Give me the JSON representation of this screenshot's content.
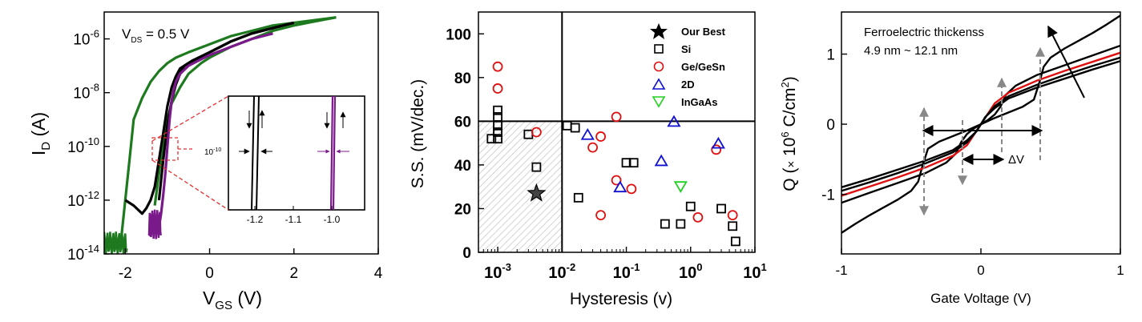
{
  "colors": {
    "green": "#1e7a1e",
    "black": "#000000",
    "purple": "#7a1a8a",
    "red_dash": "#e53030",
    "si": "#000000",
    "gegesn": "#e01010",
    "twod": "#1010d0",
    "ingaas": "#20d020",
    "hatch": "#bfbfbf",
    "grey_arrow": "#888888",
    "red_curve": "#e01010"
  },
  "chart_data": [
    {
      "type": "line",
      "ylabel_main": "I",
      "ylabel_sub": "D",
      "ylabel_unit": " (A)",
      "xlabel_main": "V",
      "xlabel_sub": "GS",
      "xlabel_unit": " (V)",
      "annotation": {
        "main": "V",
        "sub": "DS",
        "rest": " = 0.5 V"
      },
      "xlim": [
        -2.5,
        4
      ],
      "ylim_exp": [
        -14,
        -5
      ],
      "xticks": [
        "-2",
        "0",
        "2",
        "4"
      ],
      "ytick_base": "10",
      "ytick_exps": [
        "-6",
        "-8",
        "-10",
        "-12",
        "-14"
      ],
      "series": [
        {
          "color_key": "green",
          "x": [
            -2.5,
            -2.1,
            -1.9,
            -1.8,
            -1.6,
            -1.4,
            -1.2,
            -1.0,
            -0.8,
            -0.5,
            0.0,
            0.5,
            1.0,
            1.5,
            2.0,
            2.5,
            3.0
          ],
          "y": [
            -13.8,
            -13.5,
            -10.5,
            -9.0,
            -8.2,
            -7.6,
            -7.2,
            -6.9,
            -6.7,
            -6.5,
            -6.2,
            -5.9,
            -5.7,
            -5.5,
            -5.4,
            -5.3,
            -5.2
          ]
        },
        {
          "color_key": "green",
          "x": [
            -1.3,
            -1.2,
            -1.1,
            -1.0,
            -0.9,
            -0.7,
            -0.5,
            -0.2,
            0.0,
            0.5,
            1.0,
            1.5,
            2.0,
            2.5,
            3.0
          ],
          "y": [
            -12.2,
            -11.0,
            -9.8,
            -9.0,
            -8.4,
            -7.8,
            -7.3,
            -6.9,
            -6.7,
            -6.3,
            -6.0,
            -5.7,
            -5.5,
            -5.35,
            -5.2
          ]
        },
        {
          "color_key": "black",
          "x": [
            -2.0,
            -1.8,
            -1.6,
            -1.5,
            -1.4,
            -1.3,
            -1.2,
            -1.1,
            -1.0,
            -0.9,
            -0.8,
            -0.7,
            -0.5,
            0.0,
            0.5,
            1.0,
            1.5,
            2.0
          ],
          "y": [
            -12.0,
            -12.2,
            -12.5,
            -12.3,
            -12.0,
            -11.5,
            -10.5,
            -9.5,
            -8.5,
            -7.8,
            -7.4,
            -7.1,
            -6.9,
            -6.5,
            -6.1,
            -5.8,
            -5.6,
            -5.4
          ]
        },
        {
          "color_key": "black",
          "x": [
            -1.2,
            -1.1,
            -1.0,
            -0.9,
            -0.8,
            -0.7,
            -0.6,
            -0.4,
            0.0,
            0.5,
            1.0,
            1.5,
            2.0
          ],
          "y": [
            -12.0,
            -10.5,
            -9.2,
            -8.3,
            -7.7,
            -7.3,
            -7.0,
            -6.8,
            -6.5,
            -6.1,
            -5.8,
            -5.6,
            -5.4
          ]
        },
        {
          "color_key": "purple",
          "x": [
            -1.2,
            -1.15,
            -1.1,
            -1.05,
            -1.0,
            -0.95,
            -0.9,
            -0.85,
            -0.8,
            -0.7,
            -0.5,
            0.0,
            0.5,
            1.0,
            1.5
          ],
          "y": [
            -13.0,
            -12.5,
            -11.8,
            -11.0,
            -10.0,
            -9.0,
            -8.3,
            -7.9,
            -7.6,
            -7.3,
            -7.0,
            -6.6,
            -6.3,
            -6.0,
            -5.8
          ]
        }
      ],
      "inset": {
        "xticks": [
          "-1.2",
          "-1.1",
          "-1.0"
        ],
        "yexp": "-10"
      }
    },
    {
      "type": "scatter",
      "ylabel": "S.S. (mV/dec.)",
      "xlabel": "Hysteresis (v)",
      "xlim_exp": [
        -3.3,
        1
      ],
      "ylim": [
        0,
        110
      ],
      "xtick_base": "10",
      "xtick_exps": [
        "-3",
        "-2",
        "-1",
        "0",
        "1"
      ],
      "yticks": [
        "0",
        "20",
        "40",
        "60",
        "80",
        "100"
      ],
      "reference_lines": {
        "x": 0.01,
        "y": 60
      },
      "legend_position": "top-right",
      "legend": [
        "Our Best",
        "Si",
        "Ge/GeSn",
        "2D",
        "InGaAs"
      ],
      "series": [
        {
          "marker": "star",
          "color_key": "black",
          "points": [
            [
              0.004,
              27
            ]
          ]
        },
        {
          "marker": "square",
          "color_key": "si",
          "points": [
            [
              0.001,
              65
            ],
            [
              0.001,
              62
            ],
            [
              0.001,
              58
            ],
            [
              0.001,
              55
            ],
            [
              0.001,
              52
            ],
            [
              0.0008,
              52
            ],
            [
              0.003,
              54
            ],
            [
              0.004,
              39
            ],
            [
              0.012,
              58
            ],
            [
              0.016,
              57
            ],
            [
              0.018,
              25
            ],
            [
              0.1,
              41
            ],
            [
              0.13,
              41
            ],
            [
              0.4,
              13
            ],
            [
              0.7,
              13
            ],
            [
              1.0,
              21
            ],
            [
              3.0,
              20
            ],
            [
              4.5,
              12
            ],
            [
              5.0,
              5
            ]
          ]
        },
        {
          "marker": "circle",
          "color_key": "gegesn",
          "points": [
            [
              0.001,
              85
            ],
            [
              0.001,
              75
            ],
            [
              0.004,
              55
            ],
            [
              0.03,
              48
            ],
            [
              0.04,
              53
            ],
            [
              0.04,
              17
            ],
            [
              0.07,
              62
            ],
            [
              0.07,
              33
            ],
            [
              0.12,
              29
            ],
            [
              1.3,
              16
            ],
            [
              2.5,
              47
            ],
            [
              4.5,
              17
            ]
          ]
        },
        {
          "marker": "triangle-up",
          "color_key": "twod",
          "points": [
            [
              0.025,
              54
            ],
            [
              0.08,
              30
            ],
            [
              0.35,
              42
            ],
            [
              0.55,
              60
            ],
            [
              2.7,
              50
            ]
          ]
        },
        {
          "marker": "triangle-down",
          "color_key": "ingaas",
          "points": [
            [
              0.7,
              30
            ]
          ]
        }
      ]
    },
    {
      "type": "line",
      "ylabel_main": "Q (",
      "ylabel_times": "×",
      "ylabel_num": " 10",
      "ylabel_exp": "6",
      "ylabel_unit": " C/cm",
      "ylabel_unit_exp": "2",
      "ylabel_close": ")",
      "xlabel": "Gate Voltage (V)",
      "annotation_1": "Ferroelectric thickenss",
      "annotation_2": "4.9 nm ~ 12.1 nm",
      "delta_label": "ΔV",
      "xlim": [
        -1,
        1
      ],
      "ylim": [
        -1.85,
        1.6
      ],
      "xticks": [
        "-1",
        "0",
        "1"
      ],
      "yticks": [
        "-1",
        "0",
        "1"
      ],
      "series": [
        {
          "name": "",
          "color_key": "black",
          "x": [
            -1,
            -0.9,
            -0.8,
            -0.7,
            -0.6,
            -0.5,
            -0.45,
            -0.42,
            -0.38,
            -0.3,
            -0.2,
            -0.1,
            0,
            0.1,
            0.2,
            0.3,
            0.38,
            0.42,
            0.45,
            0.5,
            0.6,
            0.7,
            0.8,
            0.9,
            1
          ],
          "y": [
            -1.55,
            -1.42,
            -1.3,
            -1.19,
            -1.08,
            -0.95,
            -0.82,
            -0.6,
            -0.35,
            -0.25,
            -0.17,
            -0.09,
            0.0,
            0.09,
            0.17,
            0.25,
            0.35,
            0.6,
            0.82,
            0.95,
            1.08,
            1.19,
            1.3,
            1.42,
            1.55
          ]
        },
        {
          "name": "",
          "color_key": "black",
          "x": [
            -1,
            -0.8,
            -0.6,
            -0.4,
            -0.25,
            -0.18,
            -0.14,
            -0.1,
            -0.05,
            0,
            0.05,
            0.1,
            0.14,
            0.18,
            0.25,
            0.4,
            0.6,
            0.8,
            1
          ],
          "y": [
            -1.12,
            -0.98,
            -0.84,
            -0.7,
            -0.55,
            -0.42,
            -0.25,
            -0.14,
            -0.06,
            0.0,
            0.06,
            0.14,
            0.25,
            0.42,
            0.55,
            0.7,
            0.84,
            0.98,
            1.12
          ]
        },
        {
          "name": "",
          "color_key": "red_curve",
          "x": [
            -1,
            -0.8,
            -0.6,
            -0.4,
            -0.2,
            -0.1,
            -0.05,
            0,
            0.05,
            0.1,
            0.2,
            0.4,
            0.6,
            0.8,
            1
          ],
          "y": [
            -1.02,
            -0.89,
            -0.76,
            -0.62,
            -0.45,
            -0.3,
            -0.15,
            0.0,
            0.15,
            0.3,
            0.45,
            0.62,
            0.76,
            0.89,
            1.02
          ]
        },
        {
          "name": "",
          "color_key": "black",
          "x": [
            -1,
            -0.8,
            -0.6,
            -0.4,
            -0.2,
            -0.1,
            -0.04,
            0,
            0.04,
            0.1,
            0.2,
            0.4,
            0.6,
            0.8,
            1
          ],
          "y": [
            -0.95,
            -0.83,
            -0.7,
            -0.56,
            -0.4,
            -0.26,
            -0.12,
            0.0,
            0.12,
            0.26,
            0.4,
            0.56,
            0.7,
            0.83,
            0.95
          ]
        },
        {
          "name": "",
          "color_key": "black",
          "x": [
            -1,
            -0.8,
            -0.6,
            -0.4,
            -0.2,
            -0.1,
            -0.03,
            0,
            0.03,
            0.1,
            0.2,
            0.4,
            0.6,
            0.8,
            1
          ],
          "y": [
            -0.9,
            -0.78,
            -0.65,
            -0.52,
            -0.37,
            -0.23,
            -0.1,
            0.0,
            0.1,
            0.23,
            0.37,
            0.52,
            0.65,
            0.78,
            0.9
          ]
        }
      ]
    }
  ]
}
